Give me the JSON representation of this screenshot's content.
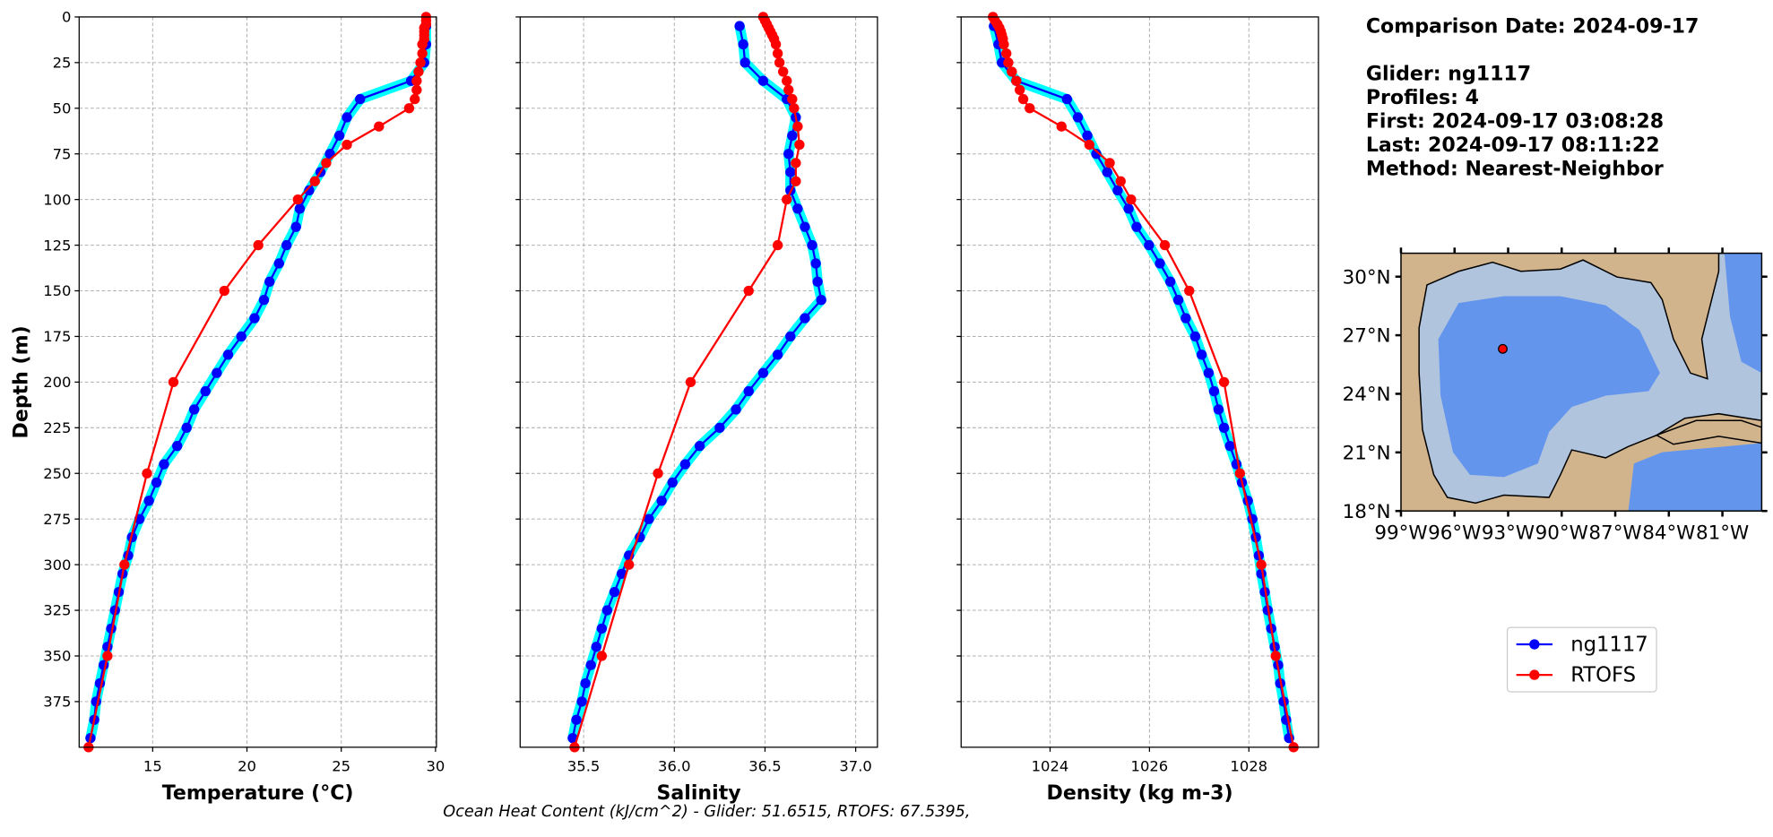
{
  "chart_data": [
    {
      "type": "line",
      "xlabel": "Temperature (°C)",
      "ylabel": "Depth (m)",
      "xlim": [
        11.1,
        30.05
      ],
      "xticks": [
        15,
        20,
        25,
        30
      ],
      "ylim": [
        0,
        400
      ],
      "yticks": [
        0,
        25,
        50,
        75,
        100,
        125,
        150,
        175,
        200,
        225,
        250,
        275,
        300,
        325,
        350,
        375
      ],
      "ytick_labels": true,
      "grid": true,
      "legend": true,
      "series": [
        {
          "name": "ng1117",
          "color": "#0000ff",
          "band_color": "#00ffff",
          "depth": [
            5,
            15,
            25,
            35,
            45,
            55,
            65,
            75,
            85,
            95,
            105,
            115,
            125,
            135,
            145,
            155,
            165,
            175,
            185,
            195,
            205,
            215,
            225,
            235,
            245,
            255,
            265,
            275,
            285,
            295,
            305,
            315,
            325,
            335,
            345,
            355,
            365,
            375,
            385,
            395
          ],
          "values": [
            29.5,
            29.5,
            29.4,
            28.7,
            26.0,
            25.3,
            24.9,
            24.4,
            23.9,
            23.3,
            22.8,
            22.6,
            22.1,
            21.7,
            21.2,
            20.9,
            20.4,
            19.7,
            19.0,
            18.4,
            17.8,
            17.2,
            16.8,
            16.3,
            15.6,
            15.2,
            14.8,
            14.3,
            13.9,
            13.7,
            13.4,
            13.2,
            13.0,
            12.8,
            12.6,
            12.4,
            12.2,
            12.0,
            11.9,
            11.7
          ]
        },
        {
          "name": "RTOFS",
          "color": "#ff0000",
          "depth": [
            0,
            2,
            4,
            6,
            8,
            10,
            12,
            15,
            20,
            25,
            30,
            35,
            40,
            45,
            50,
            60,
            70,
            80,
            90,
            100,
            125,
            150,
            200,
            250,
            300,
            350,
            400
          ],
          "values": [
            29.5,
            29.5,
            29.5,
            29.4,
            29.4,
            29.4,
            29.4,
            29.3,
            29.3,
            29.2,
            29.1,
            29.0,
            29.0,
            28.9,
            28.6,
            27.0,
            25.3,
            24.2,
            23.6,
            22.7,
            20.6,
            18.8,
            16.1,
            14.7,
            13.5,
            12.6,
            11.6
          ]
        }
      ]
    },
    {
      "type": "line",
      "xlabel": "Salinity",
      "xlim": [
        35.15,
        37.12
      ],
      "xticks": [
        35.5,
        {
          "value": 36,
          "label": "36.0"
        },
        36.5,
        {
          "value": 37,
          "label": "37.0"
        }
      ],
      "ylim": [
        0,
        400
      ],
      "yticks": [
        0,
        25,
        50,
        75,
        100,
        125,
        150,
        175,
        200,
        225,
        250,
        275,
        300,
        325,
        350,
        375
      ],
      "ytick_labels": false,
      "grid": true,
      "series": [
        {
          "name": "ng1117",
          "color": "#0000ff",
          "band_color": "#00ffff",
          "depth": [
            5,
            15,
            25,
            35,
            45,
            55,
            65,
            75,
            85,
            95,
            105,
            115,
            125,
            135,
            145,
            155,
            165,
            175,
            185,
            195,
            205,
            215,
            225,
            235,
            245,
            255,
            265,
            275,
            285,
            295,
            305,
            315,
            325,
            335,
            345,
            355,
            365,
            375,
            385,
            395
          ],
          "values": [
            36.36,
            36.38,
            36.39,
            36.49,
            36.62,
            36.67,
            36.65,
            36.63,
            36.64,
            36.64,
            36.68,
            36.72,
            36.76,
            36.78,
            36.79,
            36.81,
            36.72,
            36.64,
            36.57,
            36.49,
            36.41,
            36.34,
            36.25,
            36.14,
            36.06,
            35.99,
            35.93,
            35.86,
            35.81,
            35.75,
            35.71,
            35.67,
            35.63,
            35.6,
            35.57,
            35.54,
            35.51,
            35.49,
            35.46,
            35.44
          ]
        },
        {
          "name": "RTOFS",
          "color": "#ff0000",
          "depth": [
            0,
            2,
            4,
            6,
            8,
            10,
            12,
            15,
            20,
            25,
            30,
            35,
            40,
            45,
            50,
            60,
            70,
            80,
            90,
            100,
            125,
            150,
            200,
            250,
            300,
            350,
            400
          ],
          "values": [
            36.49,
            36.5,
            36.51,
            36.52,
            36.53,
            36.54,
            36.55,
            36.56,
            36.57,
            36.58,
            36.6,
            36.62,
            36.63,
            36.65,
            36.66,
            36.68,
            36.69,
            36.67,
            36.67,
            36.62,
            36.57,
            36.41,
            36.09,
            35.91,
            35.75,
            35.6,
            35.45
          ]
        }
      ]
    },
    {
      "type": "line",
      "xlabel": "Density (kg m-3)",
      "xlim": [
        1022.21,
        1029.4
      ],
      "xticks": [
        1024,
        1026,
        1028
      ],
      "ylim": [
        0,
        400
      ],
      "yticks": [
        0,
        25,
        50,
        75,
        100,
        125,
        150,
        175,
        200,
        225,
        250,
        275,
        300,
        325,
        350,
        375
      ],
      "ytick_labels": false,
      "grid": true,
      "series": [
        {
          "name": "ng1117",
          "color": "#0000ff",
          "band_color": "#00ffff",
          "depth": [
            5,
            15,
            25,
            35,
            45,
            55,
            65,
            75,
            85,
            95,
            105,
            115,
            125,
            135,
            145,
            155,
            165,
            175,
            185,
            195,
            205,
            215,
            225,
            235,
            245,
            255,
            265,
            275,
            285,
            295,
            305,
            315,
            325,
            335,
            345,
            355,
            365,
            375,
            385,
            395
          ],
          "values": [
            1022.87,
            1022.96,
            1023.03,
            1023.32,
            1024.34,
            1024.56,
            1024.75,
            1024.93,
            1025.15,
            1025.36,
            1025.58,
            1025.74,
            1025.99,
            1026.21,
            1026.42,
            1026.58,
            1026.73,
            1026.92,
            1027.05,
            1027.19,
            1027.3,
            1027.39,
            1027.5,
            1027.62,
            1027.75,
            1027.86,
            1027.98,
            1028.07,
            1028.14,
            1028.2,
            1028.25,
            1028.32,
            1028.38,
            1028.45,
            1028.52,
            1028.59,
            1028.63,
            1028.7,
            1028.75,
            1028.81
          ]
        },
        {
          "name": "RTOFS",
          "color": "#ff0000",
          "depth": [
            0,
            2,
            4,
            6,
            8,
            10,
            12,
            15,
            20,
            25,
            30,
            35,
            40,
            45,
            50,
            60,
            70,
            80,
            90,
            100,
            125,
            150,
            200,
            250,
            300,
            350,
            400
          ],
          "values": [
            1022.85,
            1022.89,
            1022.94,
            1022.98,
            1023.01,
            1023.03,
            1023.05,
            1023.07,
            1023.12,
            1023.16,
            1023.23,
            1023.32,
            1023.39,
            1023.46,
            1023.59,
            1024.23,
            1024.79,
            1025.2,
            1025.42,
            1025.63,
            1026.31,
            1026.8,
            1027.5,
            1027.82,
            1028.25,
            1028.54,
            1028.9
          ]
        }
      ]
    }
  ],
  "footnote": "Ocean Heat Content (kJ/cm^2) - Glider: 51.6515,  RTOFS: 67.5395,",
  "info": [
    "Comparison Date: 2024-09-17",
    "Glider: ng1117",
    "Profiles: 4",
    "First: 2024-09-17 03:08:28",
    "Last: 2024-09-17 08:11:22",
    "Method: Nearest-Neighbor"
  ],
  "map": {
    "xlim": [
      -99,
      -78.8
    ],
    "ylim": [
      18,
      31.2
    ],
    "lat_ticks": [
      {
        "value": 30,
        "label": "30°N"
      },
      {
        "value": 27,
        "label": "27°N"
      },
      {
        "value": 24,
        "label": "24°N"
      },
      {
        "value": 21,
        "label": "21°N"
      },
      {
        "value": 18,
        "label": "18°N"
      }
    ],
    "lon_ticks": [
      {
        "value": -99,
        "label": "99°W"
      },
      {
        "value": -96,
        "label": "96°W"
      },
      {
        "value": -93,
        "label": "93°W"
      },
      {
        "value": -90,
        "label": "90°W"
      },
      {
        "value": -87,
        "label": "87°W"
      },
      {
        "value": -84,
        "label": "84°W"
      },
      {
        "value": -81,
        "label": "81°W"
      }
    ],
    "point": {
      "lon": -93.3,
      "lat": 26.3,
      "color": "#ff0000"
    }
  }
}
